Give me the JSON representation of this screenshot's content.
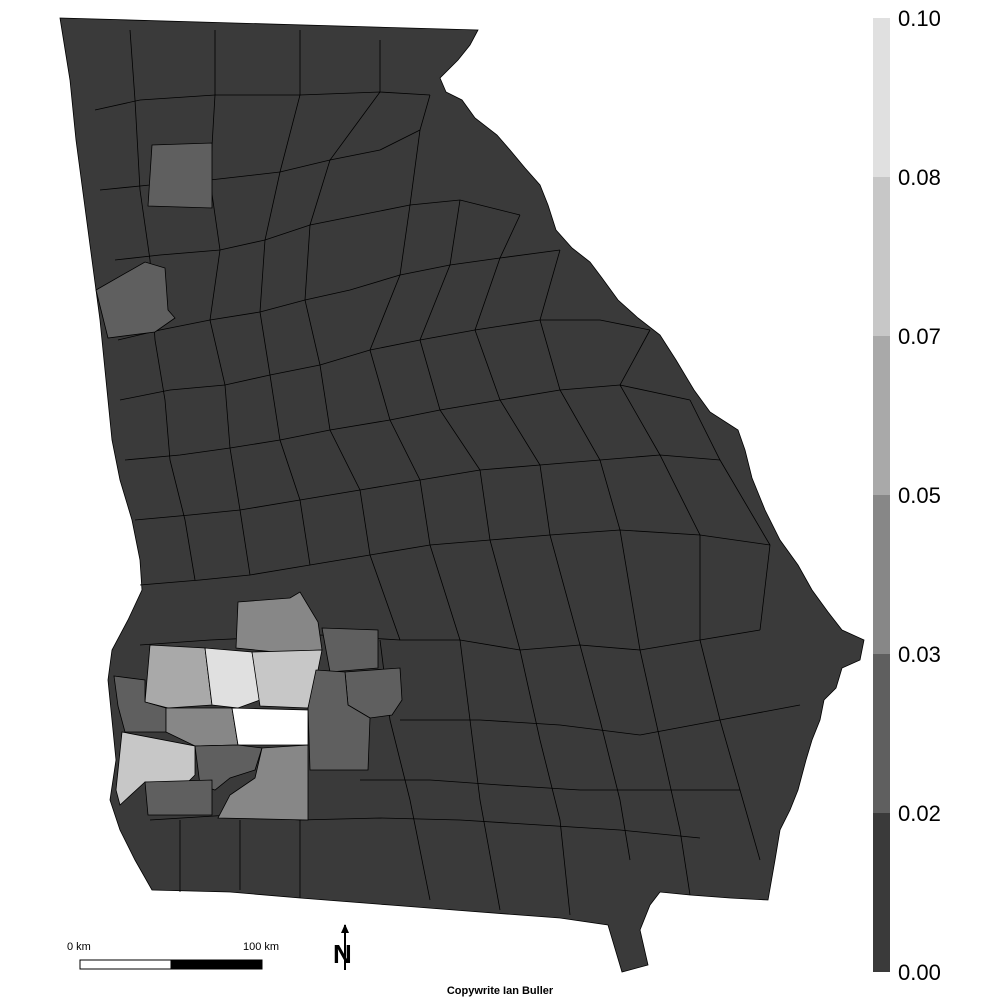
{
  "legend": {
    "ticks": [
      "0.10",
      "0.08",
      "0.07",
      "0.05",
      "0.03",
      "0.02",
      "0.00"
    ],
    "bins": [
      {
        "color": "#3a3a3a"
      },
      {
        "color": "#5f5f5f"
      },
      {
        "color": "#878787"
      },
      {
        "color": "#a9a9a9"
      },
      {
        "color": "#c7c7c7"
      },
      {
        "color": "#e0e0e0"
      }
    ]
  },
  "scale_bar": {
    "start_label": "0 km",
    "end_label": "100 km"
  },
  "north_arrow": {
    "label": "N",
    "icon": "north-arrow-icon"
  },
  "credit": "Copywrite Ian Buller",
  "colors": {
    "base_fill": "#3a3a3a",
    "highlight_white": "#ffffff",
    "border": "#000000"
  }
}
